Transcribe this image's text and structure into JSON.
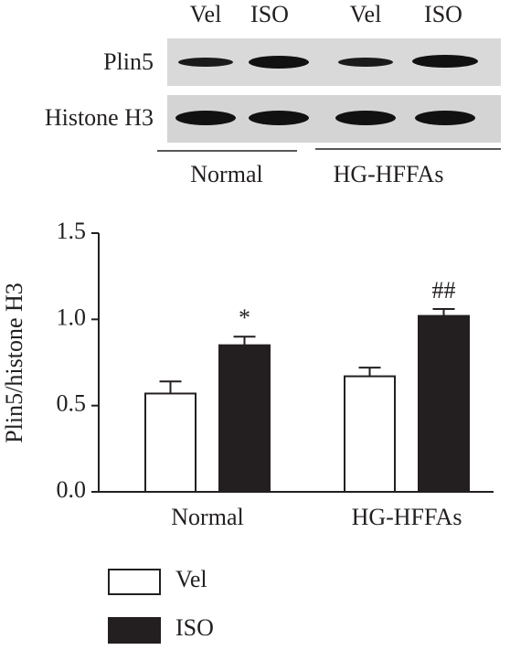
{
  "blot": {
    "lanes": [
      "Vel",
      "ISO",
      "Vel",
      "ISO"
    ],
    "rows": [
      "Plin5",
      "Histone H3"
    ],
    "groups": [
      "Normal",
      "HG-HFFAs"
    ]
  },
  "chart_data": {
    "type": "bar",
    "y_label": "Plin5/histone H3",
    "categories": [
      "Normal",
      "HG-HFFAs"
    ],
    "series": [
      {
        "name": "Vel",
        "color": "#ffffff",
        "values": [
          0.57,
          0.67
        ],
        "errors": [
          0.07,
          0.05
        ]
      },
      {
        "name": "ISO",
        "color": "#231f20",
        "values": [
          0.85,
          1.02
        ],
        "errors": [
          0.05,
          0.04
        ]
      }
    ],
    "annotations": [
      "*",
      "##"
    ],
    "ylim": [
      0,
      1.5
    ],
    "yticks": [
      {
        "value": 0,
        "label": "0.0"
      },
      0.5,
      {
        "value": 1,
        "label": "1.0"
      },
      1.5
    ]
  }
}
